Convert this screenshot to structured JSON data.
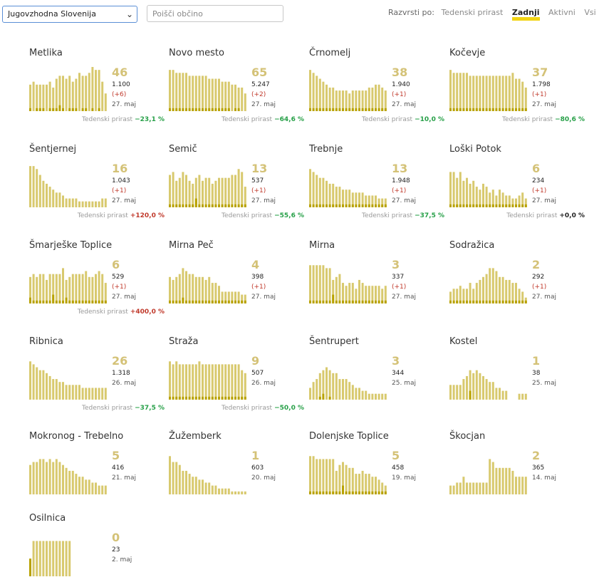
{
  "filters": {
    "region_value": "Jugovzhodna Slovenija",
    "search_placeholder": "Poišči občino"
  },
  "sort": {
    "label": "Razvrsti po:",
    "options": [
      "Tedenski prirast",
      "Zadnji",
      "Aktivni",
      "Vsi"
    ],
    "active": "Zadnji"
  },
  "growth_label": "Tedenski prirast",
  "colors": {
    "bar": "#d8c96e",
    "bar_dark": "#b8a200",
    "active_cases": "#d4c277",
    "negative": "#27a048",
    "positive": "#c0392b",
    "highlight": "#f2d414"
  },
  "municipalities": [
    {
      "name": "Metlika",
      "active": "46",
      "total": "1.100",
      "delta": "(+6)",
      "date": "27. maj",
      "growth": "−23,1 %",
      "trend": "neg",
      "chart_data": {
        "type": "bar",
        "values": [
          9,
          10,
          9,
          9,
          9,
          9,
          10,
          8,
          11,
          12,
          12,
          11,
          12,
          10,
          11,
          13,
          12,
          12,
          13,
          15,
          14,
          14,
          10,
          6
        ],
        "highlight": [
          1,
          0,
          1,
          1,
          1,
          0,
          1,
          1,
          1,
          2,
          1,
          0,
          1,
          1,
          1,
          0,
          1,
          1,
          0,
          1,
          0,
          1,
          0,
          0
        ]
      }
    },
    {
      "name": "Novo mesto",
      "active": "65",
      "total": "5.247",
      "delta": "(+2)",
      "date": "27. maj",
      "growth": "−64,6 %",
      "trend": "neg",
      "chart_data": {
        "type": "bar",
        "values": [
          14,
          14,
          13,
          13,
          13,
          13,
          12,
          12,
          12,
          12,
          12,
          12,
          11,
          11,
          11,
          11,
          10,
          10,
          10,
          9,
          9,
          8,
          8,
          6
        ],
        "highlight": [
          1,
          1,
          1,
          1,
          1,
          1,
          1,
          1,
          1,
          1,
          1,
          1,
          1,
          1,
          1,
          1,
          1,
          1,
          1,
          0,
          1,
          1,
          0,
          0
        ]
      }
    },
    {
      "name": "Črnomelj",
      "active": "38",
      "total": "1.940",
      "delta": "(+1)",
      "date": "27. maj",
      "growth": "−10,0 %",
      "trend": "neg",
      "chart_data": {
        "type": "bar",
        "values": [
          14,
          13,
          12,
          11,
          10,
          9,
          8,
          8,
          7,
          7,
          7,
          7,
          6,
          7,
          7,
          7,
          7,
          7,
          8,
          8,
          9,
          9,
          8,
          7
        ],
        "highlight": [
          1,
          1,
          1,
          1,
          1,
          1,
          1,
          1,
          1,
          1,
          1,
          1,
          1,
          1,
          1,
          1,
          1,
          1,
          1,
          1,
          1,
          1,
          1,
          1
        ]
      }
    },
    {
      "name": "Kočevje",
      "active": "37",
      "total": "1.798",
      "delta": "(+1)",
      "date": "27. maj",
      "growth": "−80,6 %",
      "trend": "neg",
      "chart_data": {
        "type": "bar",
        "values": [
          14,
          13,
          13,
          13,
          13,
          13,
          12,
          12,
          12,
          12,
          12,
          12,
          12,
          12,
          12,
          12,
          12,
          12,
          12,
          13,
          11,
          11,
          10,
          8
        ],
        "highlight": [
          1,
          1,
          1,
          1,
          1,
          1,
          1,
          1,
          1,
          1,
          1,
          1,
          1,
          1,
          1,
          1,
          1,
          1,
          1,
          1,
          1,
          1,
          1,
          1
        ]
      }
    },
    {
      "name": "Šentjernej",
      "active": "16",
      "total": "1.043",
      "delta": "(+1)",
      "date": "27. maj",
      "growth": "+120,0 %",
      "trend": "pos",
      "chart_data": {
        "type": "bar",
        "values": [
          14,
          14,
          13,
          11,
          9,
          8,
          7,
          6,
          5,
          5,
          4,
          3,
          3,
          3,
          3,
          2,
          2,
          2,
          2,
          2,
          2,
          2,
          3,
          3
        ],
        "highlight": [
          0,
          0,
          0,
          0,
          0,
          0,
          0,
          0,
          0,
          0,
          0,
          0,
          0,
          0,
          0,
          0,
          0,
          0,
          0,
          0,
          0,
          0,
          0,
          0
        ]
      }
    },
    {
      "name": "Semič",
      "active": "13",
      "total": "537",
      "delta": "(+1)",
      "date": "27. maj",
      "growth": "−55,6 %",
      "trend": "neg",
      "chart_data": {
        "type": "bar",
        "values": [
          11,
          12,
          9,
          10,
          12,
          11,
          9,
          8,
          10,
          11,
          9,
          10,
          10,
          8,
          9,
          10,
          10,
          10,
          10,
          11,
          11,
          13,
          12,
          7
        ],
        "highlight": [
          1,
          1,
          1,
          1,
          1,
          1,
          1,
          1,
          3,
          1,
          1,
          1,
          1,
          1,
          1,
          1,
          1,
          1,
          1,
          1,
          1,
          1,
          1,
          1
        ]
      }
    },
    {
      "name": "Trebnje",
      "active": "13",
      "total": "1.948",
      "delta": "(+1)",
      "date": "27. maj",
      "growth": "−37,5 %",
      "trend": "neg",
      "chart_data": {
        "type": "bar",
        "values": [
          13,
          12,
          11,
          10,
          10,
          9,
          8,
          8,
          7,
          7,
          6,
          6,
          6,
          5,
          5,
          5,
          5,
          4,
          4,
          4,
          4,
          3,
          3,
          3
        ],
        "highlight": [
          1,
          1,
          1,
          1,
          1,
          1,
          1,
          1,
          1,
          1,
          1,
          1,
          1,
          1,
          1,
          1,
          1,
          1,
          1,
          1,
          1,
          1,
          1,
          1
        ]
      }
    },
    {
      "name": "Loški Potok",
      "active": "6",
      "total": "234",
      "delta": "(+1)",
      "date": "27. maj",
      "growth": "+0,0 %",
      "trend": "zero",
      "chart_data": {
        "type": "bar",
        "values": [
          12,
          12,
          10,
          12,
          9,
          10,
          8,
          9,
          7,
          6,
          8,
          7,
          5,
          6,
          4,
          6,
          5,
          4,
          4,
          3,
          3,
          4,
          5,
          3
        ],
        "highlight": [
          1,
          1,
          1,
          1,
          1,
          1,
          1,
          1,
          1,
          1,
          1,
          1,
          1,
          1,
          1,
          1,
          1,
          1,
          1,
          1,
          1,
          1,
          1,
          1
        ]
      }
    },
    {
      "name": "Šmarješke Toplice",
      "active": "6",
      "total": "529",
      "delta": "(+1)",
      "date": "27. maj",
      "growth": "+400,0 %",
      "trend": "pos",
      "chart_data": {
        "type": "bar",
        "values": [
          9,
          10,
          9,
          10,
          10,
          8,
          10,
          10,
          10,
          10,
          12,
          8,
          9,
          10,
          10,
          10,
          10,
          11,
          9,
          9,
          10,
          11,
          10,
          7
        ],
        "highlight": [
          2,
          1,
          1,
          1,
          1,
          1,
          1,
          3,
          1,
          1,
          1,
          2,
          1,
          1,
          1,
          1,
          1,
          1,
          1,
          1,
          1,
          1,
          1,
          1
        ]
      }
    },
    {
      "name": "Mirna Peč",
      "active": "4",
      "total": "398",
      "delta": "(+1)",
      "date": "27. maj",
      "growth": "",
      "trend": "",
      "chart_data": {
        "type": "bar",
        "values": [
          9,
          8,
          9,
          10,
          12,
          11,
          10,
          10,
          9,
          9,
          9,
          8,
          9,
          7,
          7,
          6,
          4,
          4,
          4,
          4,
          4,
          4,
          3,
          3
        ],
        "highlight": [
          1,
          1,
          1,
          1,
          2,
          1,
          1,
          1,
          1,
          1,
          1,
          1,
          1,
          1,
          1,
          1,
          1,
          1,
          1,
          1,
          1,
          1,
          1,
          1
        ]
      }
    },
    {
      "name": "Mirna",
      "active": "3",
      "total": "337",
      "delta": "(+1)",
      "date": "27. maj",
      "growth": "",
      "trend": "",
      "chart_data": {
        "type": "bar",
        "values": [
          13,
          13,
          13,
          13,
          13,
          12,
          12,
          8,
          9,
          10,
          7,
          6,
          7,
          7,
          5,
          8,
          7,
          6,
          6,
          6,
          6,
          6,
          5,
          6
        ],
        "highlight": [
          1,
          1,
          1,
          1,
          1,
          1,
          1,
          3,
          1,
          1,
          1,
          1,
          1,
          1,
          1,
          1,
          1,
          1,
          1,
          1,
          1,
          1,
          1,
          1
        ]
      }
    },
    {
      "name": "Sodražica",
      "active": "2",
      "total": "292",
      "delta": "(+1)",
      "date": "27. maj",
      "growth": "",
      "trend": "",
      "chart_data": {
        "type": "bar",
        "values": [
          4,
          5,
          5,
          6,
          5,
          5,
          7,
          5,
          7,
          8,
          9,
          10,
          12,
          12,
          11,
          9,
          9,
          8,
          8,
          7,
          7,
          5,
          4,
          2
        ],
        "highlight": [
          1,
          1,
          1,
          1,
          1,
          1,
          1,
          1,
          1,
          1,
          1,
          1,
          1,
          1,
          1,
          1,
          1,
          1,
          1,
          1,
          1,
          1,
          1,
          1
        ]
      }
    },
    {
      "name": "Ribnica",
      "active": "26",
      "total": "1.318",
      "delta": "",
      "date": "26. maj",
      "growth": "−37,5 %",
      "trend": "neg",
      "chart_data": {
        "type": "bar",
        "values": [
          13,
          12,
          11,
          10,
          10,
          9,
          8,
          7,
          7,
          6,
          6,
          5,
          5,
          5,
          5,
          5,
          4,
          4,
          4,
          4,
          4,
          4,
          4,
          4
        ],
        "highlight": [
          0,
          0,
          0,
          0,
          0,
          0,
          0,
          0,
          0,
          0,
          0,
          0,
          0,
          0,
          0,
          0,
          0,
          0,
          0,
          0,
          0,
          0,
          0,
          0
        ]
      }
    },
    {
      "name": "Straža",
      "active": "9",
      "total": "507",
      "delta": "",
      "date": "26. maj",
      "growth": "−50,0 %",
      "trend": "neg",
      "chart_data": {
        "type": "bar",
        "values": [
          13,
          12,
          13,
          12,
          12,
          12,
          12,
          12,
          12,
          13,
          12,
          12,
          12,
          12,
          12,
          12,
          12,
          12,
          12,
          12,
          12,
          12,
          10,
          9
        ],
        "highlight": [
          1,
          1,
          1,
          1,
          1,
          1,
          1,
          1,
          1,
          1,
          1,
          1,
          1,
          1,
          1,
          1,
          1,
          1,
          1,
          1,
          1,
          1,
          1,
          1
        ]
      }
    },
    {
      "name": "Šentrupert",
      "active": "3",
      "total": "344",
      "delta": "",
      "date": "25. maj",
      "growth": "",
      "trend": "",
      "chart_data": {
        "type": "bar",
        "values": [
          4,
          6,
          7,
          9,
          10,
          11,
          10,
          9,
          9,
          7,
          7,
          7,
          6,
          5,
          4,
          4,
          3,
          3,
          2,
          2,
          2,
          2,
          2,
          2
        ],
        "highlight": [
          0,
          0,
          0,
          1,
          2,
          0,
          1,
          0,
          0,
          0,
          0,
          0,
          0,
          0,
          0,
          0,
          0,
          0,
          0,
          0,
          0,
          0,
          0,
          0
        ]
      }
    },
    {
      "name": "Kostel",
      "active": "1",
      "total": "38",
      "delta": "",
      "date": "25. maj",
      "growth": "",
      "trend": "",
      "chart_data": {
        "type": "bar",
        "values": [
          5,
          5,
          5,
          5,
          7,
          8,
          10,
          9,
          10,
          9,
          8,
          7,
          6,
          6,
          4,
          4,
          3,
          3,
          0,
          0,
          0,
          2,
          2,
          2
        ],
        "highlight": [
          0,
          0,
          0,
          0,
          0,
          0,
          3,
          0,
          0,
          0,
          0,
          0,
          0,
          0,
          0,
          0,
          0,
          0,
          0,
          0,
          0,
          0,
          0,
          0
        ]
      }
    },
    {
      "name": "Mokronog - Trebelno",
      "active": "5",
      "total": "416",
      "delta": "",
      "date": "21. maj",
      "growth": "",
      "trend": "",
      "chart_data": {
        "type": "bar",
        "values": [
          10,
          11,
          11,
          12,
          12,
          11,
          12,
          11,
          12,
          11,
          10,
          9,
          8,
          8,
          7,
          6,
          6,
          5,
          5,
          4,
          4,
          3,
          3,
          3
        ],
        "highlight": [
          0,
          0,
          0,
          0,
          0,
          0,
          0,
          0,
          0,
          0,
          0,
          0,
          0,
          0,
          0,
          0,
          0,
          0,
          0,
          0,
          0,
          0,
          0,
          0
        ]
      }
    },
    {
      "name": "Žužemberk",
      "active": "1",
      "total": "603",
      "delta": "",
      "date": "20. maj",
      "growth": "",
      "trend": "",
      "chart_data": {
        "type": "bar",
        "values": [
          13,
          11,
          11,
          10,
          8,
          8,
          7,
          6,
          6,
          5,
          5,
          4,
          4,
          3,
          3,
          2,
          2,
          2,
          2,
          1,
          1,
          1,
          1,
          1
        ],
        "highlight": [
          0,
          0,
          0,
          0,
          0,
          0,
          0,
          0,
          0,
          0,
          0,
          0,
          0,
          0,
          0,
          0,
          0,
          0,
          0,
          0,
          0,
          0,
          0,
          0
        ]
      }
    },
    {
      "name": "Dolenjske Toplice",
      "active": "5",
      "total": "458",
      "delta": "",
      "date": "19. maj",
      "growth": "",
      "trend": "",
      "chart_data": {
        "type": "bar",
        "values": [
          13,
          13,
          12,
          12,
          12,
          12,
          12,
          12,
          8,
          10,
          11,
          10,
          9,
          9,
          7,
          7,
          8,
          7,
          7,
          6,
          6,
          5,
          4,
          3
        ],
        "highlight": [
          1,
          1,
          1,
          1,
          1,
          1,
          1,
          1,
          1,
          1,
          3,
          1,
          1,
          1,
          1,
          1,
          1,
          1,
          1,
          1,
          1,
          1,
          1,
          1
        ]
      }
    },
    {
      "name": "Škocjan",
      "active": "2",
      "total": "365",
      "delta": "",
      "date": "14. maj",
      "growth": "",
      "trend": "",
      "chart_data": {
        "type": "bar",
        "values": [
          3,
          3,
          4,
          4,
          6,
          4,
          4,
          4,
          4,
          4,
          4,
          4,
          12,
          11,
          9,
          9,
          9,
          9,
          9,
          8,
          6,
          6,
          6,
          6
        ],
        "highlight": [
          0,
          0,
          0,
          0,
          0,
          0,
          0,
          0,
          0,
          0,
          0,
          0,
          0,
          0,
          0,
          0,
          0,
          0,
          0,
          0,
          0,
          0,
          0,
          0
        ]
      }
    },
    {
      "name": "Osilnica",
      "active": "0",
      "total": "23",
      "delta": "",
      "date": "2. maj",
      "growth": "",
      "trend": "",
      "chart_data": {
        "type": "bar",
        "values": [
          6,
          12,
          12,
          12,
          12,
          12,
          12,
          12,
          12,
          12,
          12,
          12,
          12,
          0,
          0,
          0,
          0,
          0,
          0,
          0,
          0,
          0,
          0,
          0
        ],
        "highlight": [
          6,
          0,
          0,
          0,
          0,
          0,
          0,
          0,
          0,
          0,
          0,
          0,
          0,
          0,
          0,
          0,
          0,
          0,
          0,
          0,
          0,
          0,
          0,
          0
        ]
      }
    }
  ]
}
